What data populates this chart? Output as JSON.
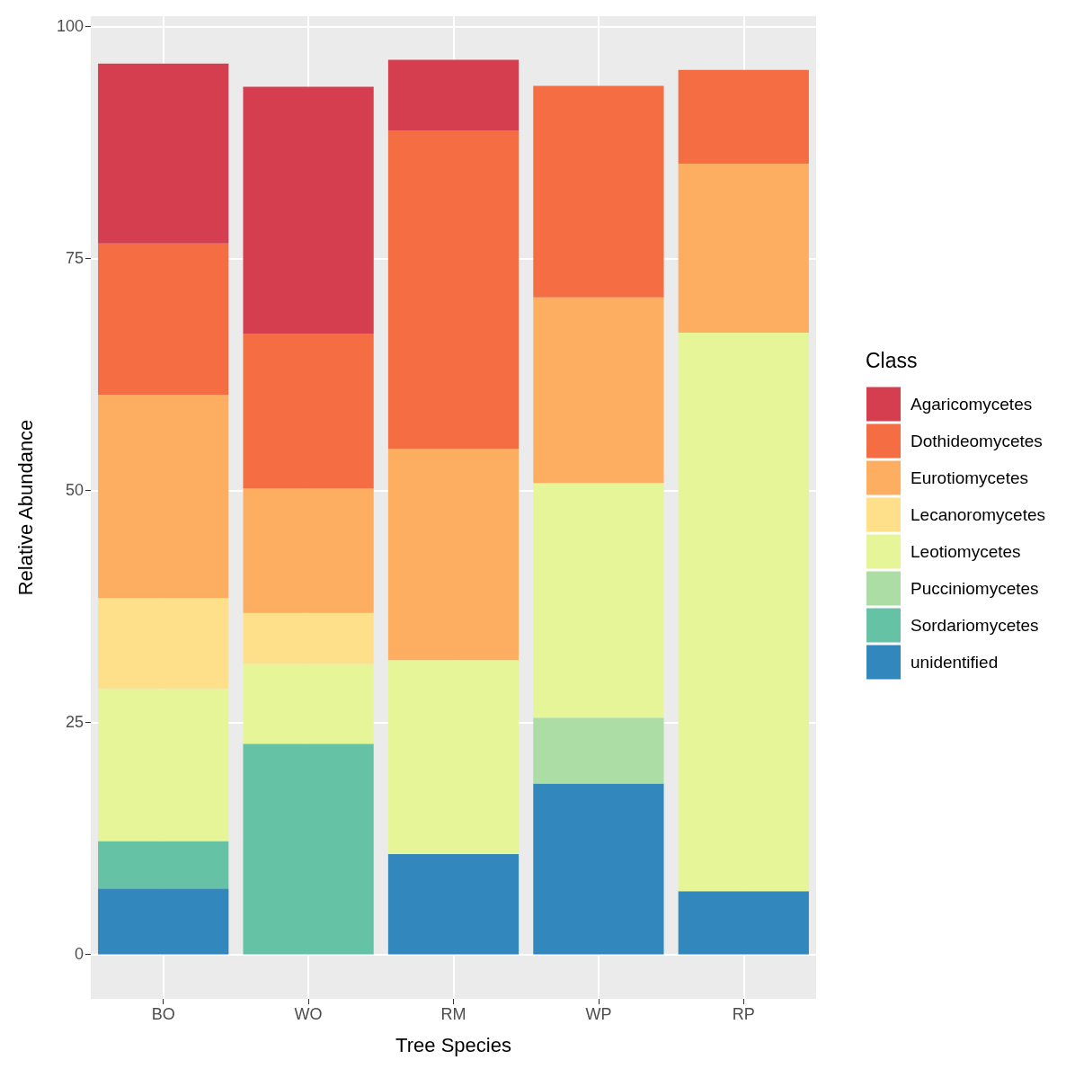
{
  "chart_data": {
    "type": "bar",
    "stacked": true,
    "xlabel": "Tree Species",
    "ylabel": "Relative Abundance",
    "legend_title": "Class",
    "categories": [
      "BO",
      "WO",
      "RM",
      "WP",
      "RP"
    ],
    "series": [
      {
        "name": "unidentified",
        "color": "#3288bd",
        "values": [
          7.1,
          null,
          10.8,
          18.4,
          6.8
        ]
      },
      {
        "name": "Sordariomycetes",
        "color": "#66c2a5",
        "values": [
          5.1,
          22.7,
          null,
          null,
          null
        ]
      },
      {
        "name": "Pucciniomycetes",
        "color": "#abdda4",
        "values": [
          null,
          null,
          null,
          7.1,
          null
        ]
      },
      {
        "name": "Leotiomycetes",
        "color": "#e6f598",
        "values": [
          16.4,
          8.6,
          20.9,
          25.3,
          60.2
        ]
      },
      {
        "name": "Lecanoromycetes",
        "color": "#fee08b",
        "values": [
          9.8,
          5.5,
          null,
          null,
          null
        ]
      },
      {
        "name": "Eurotiomycetes",
        "color": "#fdae61",
        "values": [
          21.9,
          13.4,
          22.8,
          20.0,
          18.2
        ]
      },
      {
        "name": "Dothideomycetes",
        "color": "#f46d43",
        "values": [
          16.3,
          16.7,
          34.3,
          22.8,
          10.1
        ]
      },
      {
        "name": "Agaricomycetes",
        "color": "#d53e4f",
        "values": [
          19.4,
          26.6,
          7.6,
          null,
          null
        ]
      }
    ],
    "ylim": [
      -4.8,
      101.1
    ],
    "yticks": [
      0,
      25,
      50,
      75,
      100
    ],
    "grid": true,
    "legend": "right"
  }
}
